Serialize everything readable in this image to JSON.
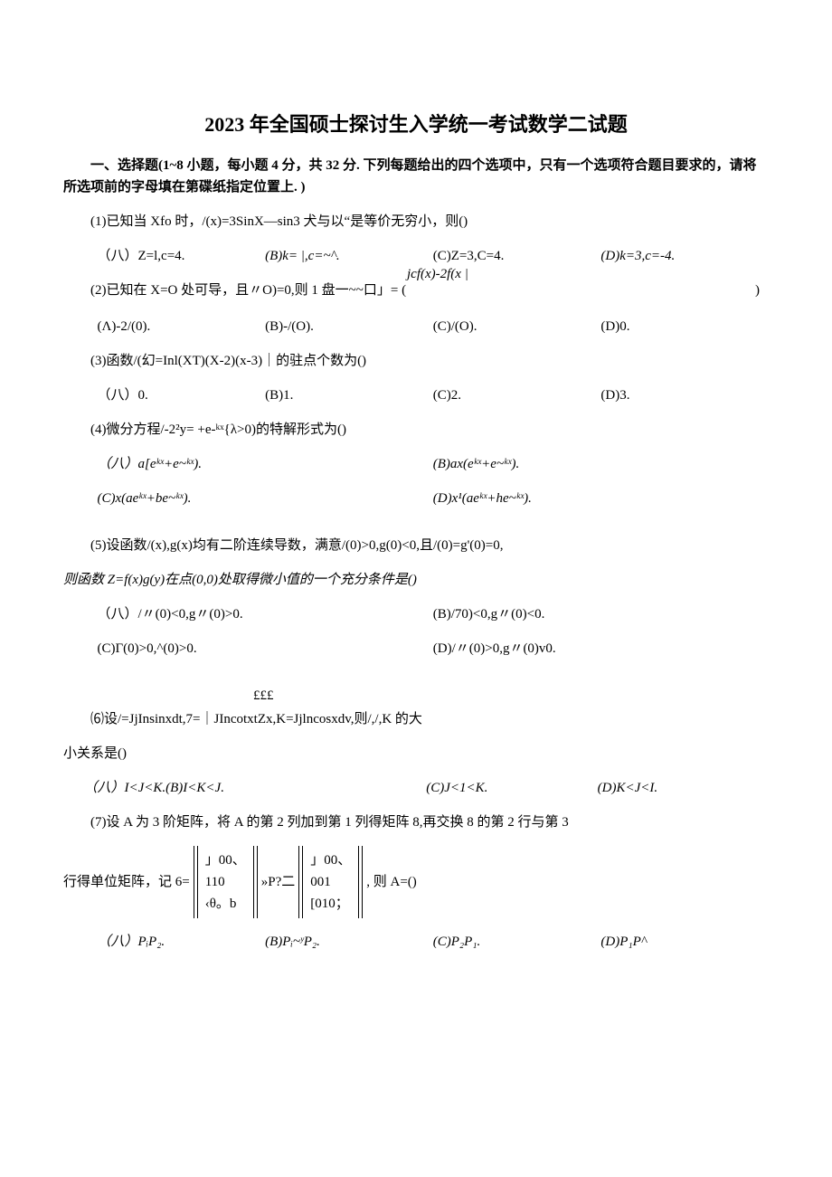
{
  "title": "2023 年全国硕士探讨生入学统一考试数学二试题",
  "section_header": "一、选择题(1~8 小题，每小题 4 分，共 32 分. 下列每题给出的四个选项中，只有一个选项符合题目要求的，请将所选项前的字母填在第碟纸指定位置上. )",
  "q1": {
    "text": "(1)已知当 Xfo 时，/(x)=3SinX—sin3 犬与以“是等价无穷小，则()",
    "opts": [
      "（八）Z=l,c=4.",
      "(B)k= |,c=~^.",
      "(C)Z=3,C=4.",
      "(D)k=3,c=-4."
    ]
  },
  "q2": {
    "limit_top": "jcf(x)-2f(x |",
    "text": "(2)已知在 X=O 处可导，且〃O)=0,则 1 盘一~~口」= (",
    "text_end": ")",
    "opts": [
      "(Λ)-2/(0).",
      "(B)-/(O).",
      "(C)/(O).",
      "(D)0."
    ]
  },
  "q3": {
    "text": "(3)函数/(幻=Inl(XT)(X-2)(x-3)｜的驻点个数为()",
    "opts": [
      "（八）0.",
      "(B)1.",
      "(C)2.",
      "(D)3."
    ]
  },
  "q4": {
    "text": "(4)微分方程/-2²y=                  +e-ᵏˣ{λ>0)的特解形式为()",
    "opts": [
      "（八）a[eᵏˣ+e~ᵏˣ).",
      "(B)ax(eᵏˣ+e~ᵏˣ).",
      "(C)x(aeᵏˣ+be~ᵏˣ).",
      "(D)x¹(aeᵏˣ+he~ᵏˣ)."
    ]
  },
  "q5": {
    "text": "(5)设函数/(x),g(x)均有二阶连续导数，满意/(0)>0,g(0)<0,且/(0)=g'(0)=0,",
    "text2": "则函数 Z=f(x)g(y)在点(0,0)处取得微小值的一个充分条件是()",
    "opts": [
      "（八）/〃(0)<0,g〃(0)>0.",
      "(B)/70)<0,g〃(0)<0.",
      "(C)Γ(0)>0,^(0)>0.",
      "(D)/〃(0)>0,g〃(0)v0."
    ]
  },
  "q6": {
    "eee": "£££",
    "text": "⑹设/=JjInsinxdt,7=｜JIncotxtZx,K=Jjlncosxdv,则/,/,K 的大",
    "text2": "小关系是()",
    "opts": [
      "（八）I<J<K.(B)I<K<J.",
      "(C)J<1<K.",
      "(D)K<J<I."
    ]
  },
  "q7": {
    "text": "(7)设 A 为 3 阶矩阵，将 A 的第 2 列加到第 1 列得矩阵 8,再交换 8 的第 2 行与第 3",
    "row_prefix": "行得单位矩阵，记 6=",
    "m1": [
      "」00、",
      "       110",
      "‹θ。b"
    ],
    "mid": " »P?二",
    "m2": [
      "」00、",
      "   001",
      "[010；"
    ],
    "row_suffix": ", 则 A=()",
    "opts": [
      "（八）PᵢP₂.",
      "(B)Pᵢ~ʸP₂.",
      "(C)P₂P₁.",
      "(D)P₁P^"
    ]
  }
}
